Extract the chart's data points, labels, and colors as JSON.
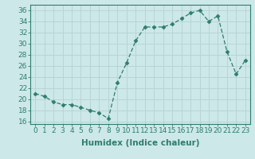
{
  "x": [
    0,
    1,
    2,
    3,
    4,
    5,
    6,
    7,
    8,
    9,
    10,
    11,
    12,
    13,
    14,
    15,
    16,
    17,
    18,
    19,
    20,
    21,
    22,
    23
  ],
  "y": [
    21,
    20.5,
    19.5,
    19,
    19,
    18.5,
    18,
    17.5,
    16.5,
    23,
    26.5,
    30.5,
    33,
    33,
    33,
    33.5,
    34.5,
    35.5,
    36,
    34,
    35,
    28.5,
    24.5,
    27
  ],
  "line_color": "#2e7d6e",
  "marker": "D",
  "marker_size": 2.5,
  "bg_color": "#cde8e8",
  "grid_color": "#b8d4d4",
  "xlabel": "Humidex (Indice chaleur)",
  "xlim": [
    -0.5,
    23.5
  ],
  "ylim": [
    15.5,
    37
  ],
  "yticks": [
    16,
    18,
    20,
    22,
    24,
    26,
    28,
    30,
    32,
    34,
    36
  ],
  "xticks": [
    0,
    1,
    2,
    3,
    4,
    5,
    6,
    7,
    8,
    9,
    10,
    11,
    12,
    13,
    14,
    15,
    16,
    17,
    18,
    19,
    20,
    21,
    22,
    23
  ],
  "tick_label_size": 6.5,
  "xlabel_size": 7.5,
  "title_color": "#2e7d6e"
}
